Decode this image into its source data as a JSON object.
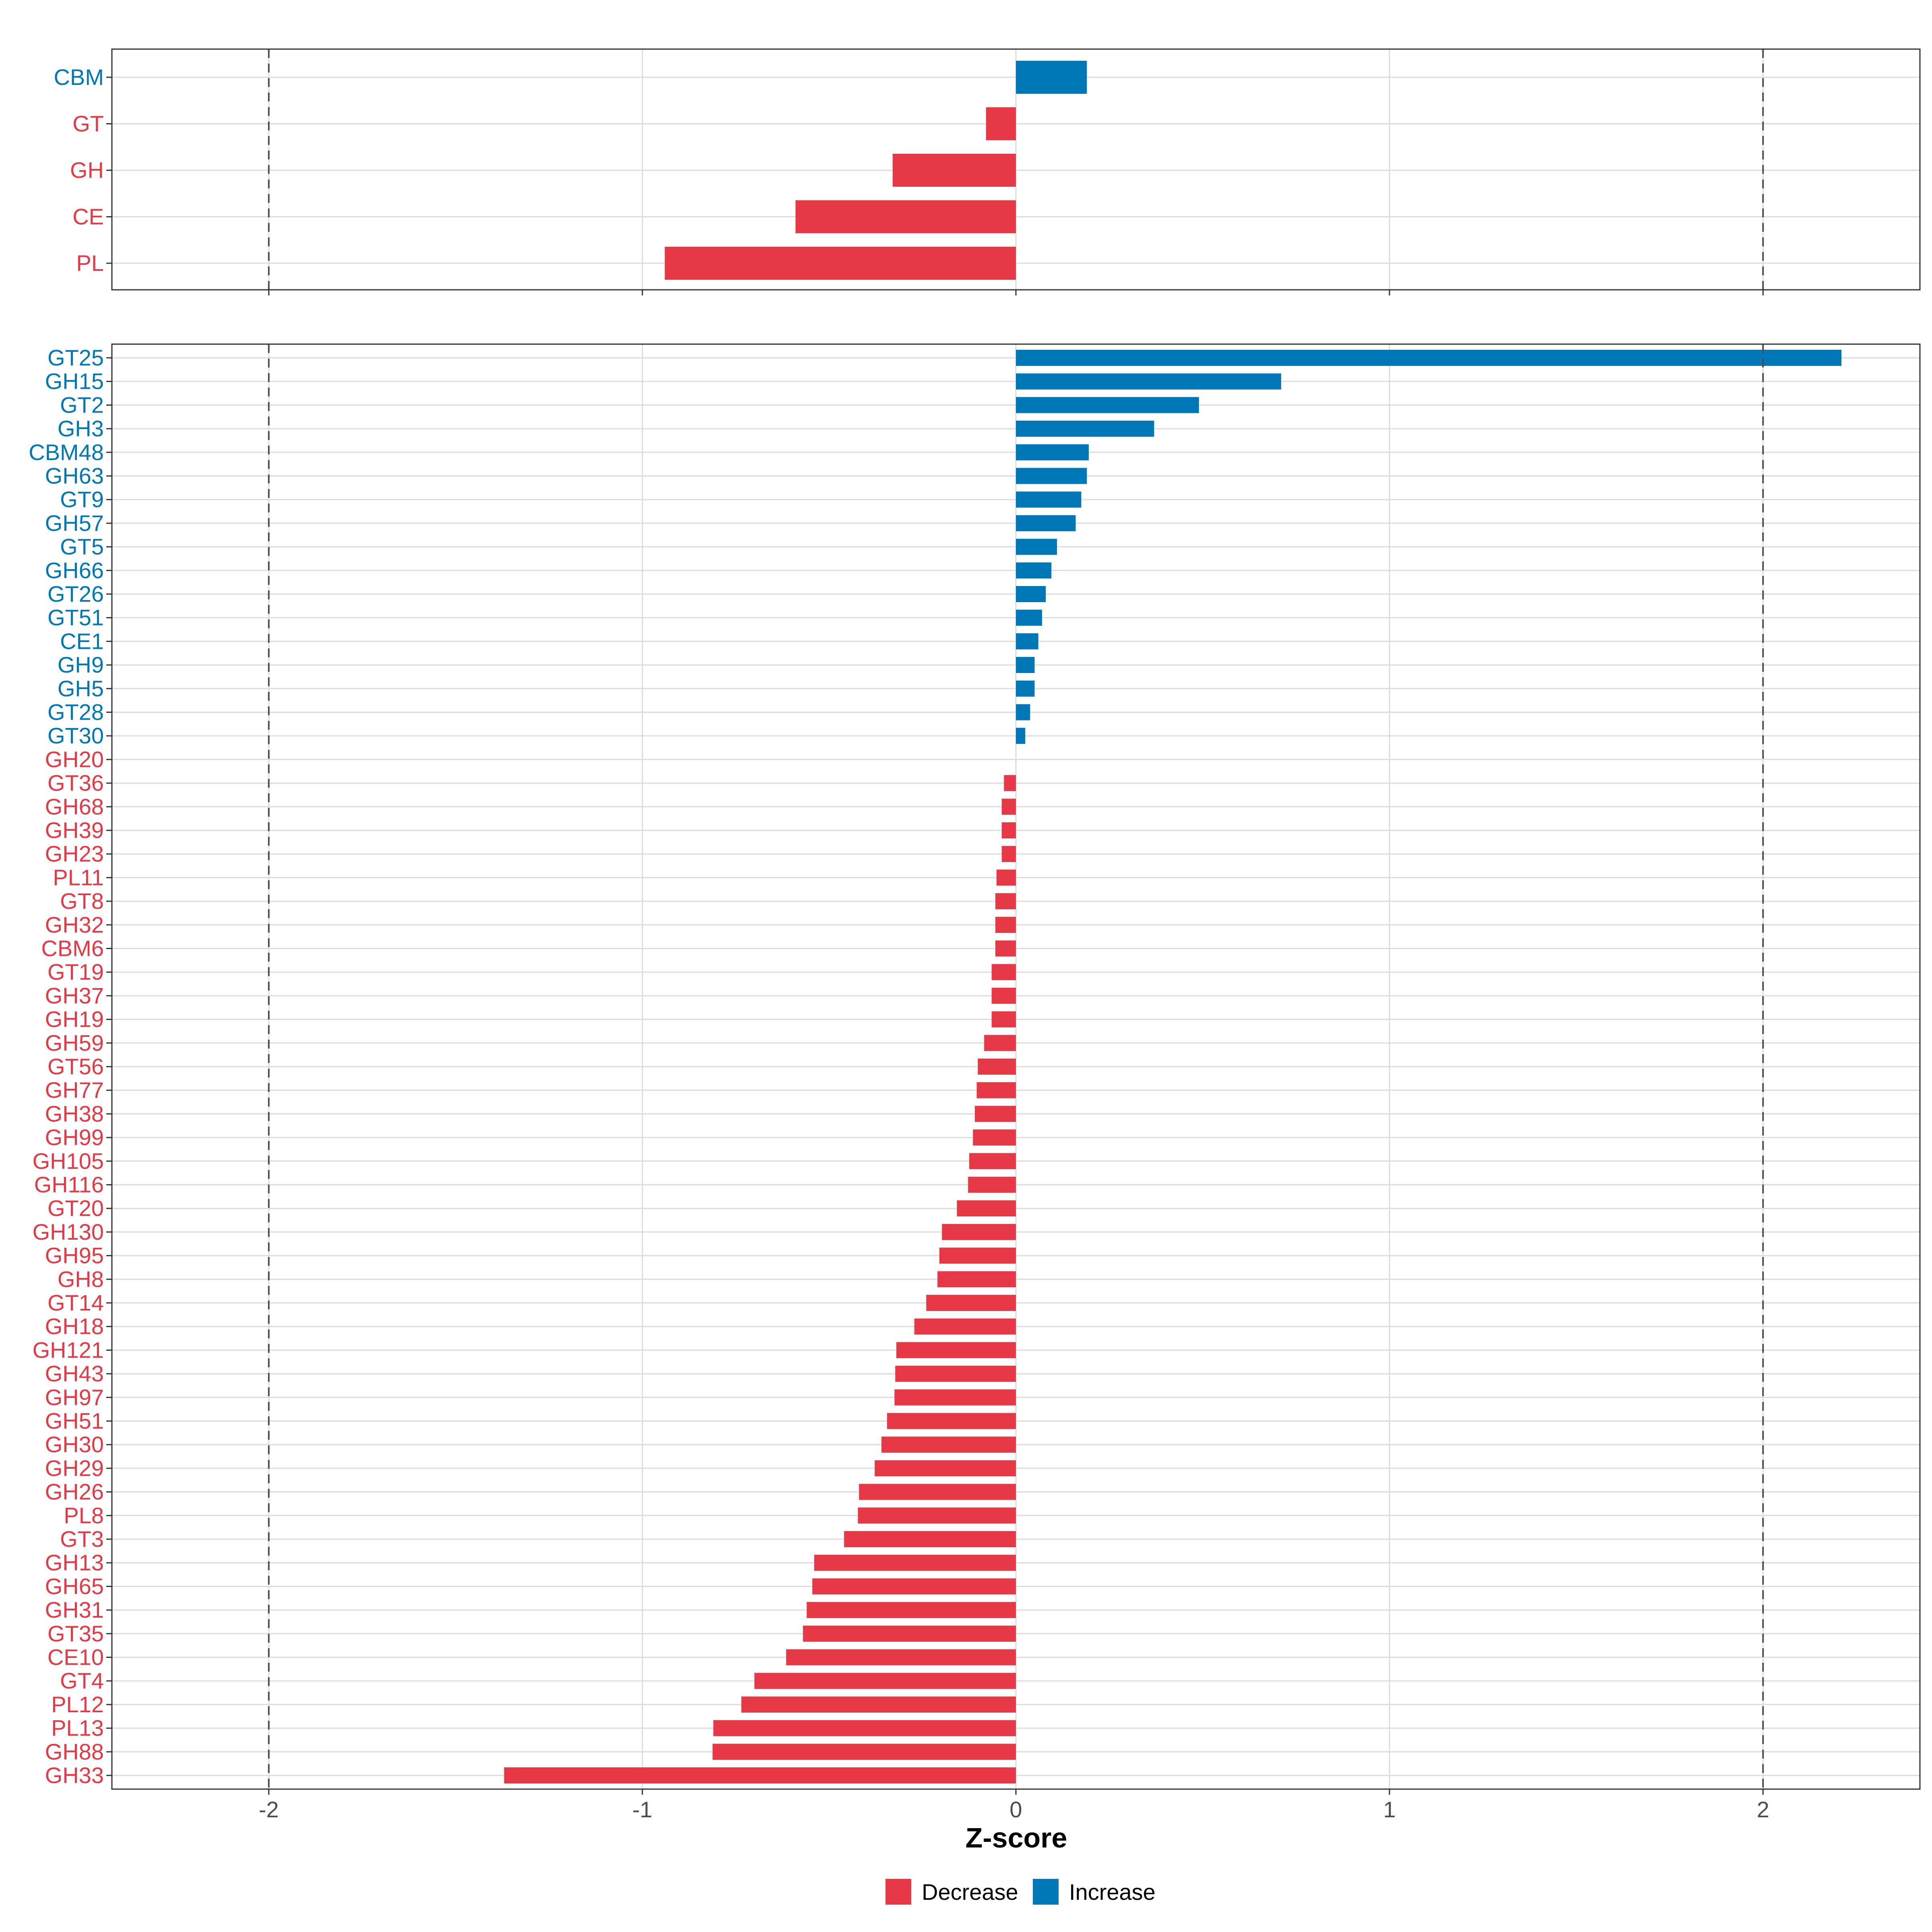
{
  "chart_data": {
    "type": "bar",
    "orientation": "horizontal",
    "xlabel": "Z-score",
    "xlim": [
      -2.42,
      2.42
    ],
    "x_ticks": [
      -2,
      -1,
      0,
      1,
      2
    ],
    "x_tick_labels": [
      "-2",
      "-1",
      "0",
      "1",
      "2"
    ],
    "reference_lines": [
      -2,
      2
    ],
    "grid": true,
    "legend": {
      "position": "bottom",
      "items": [
        {
          "label": "Decrease",
          "color": "#e63946"
        },
        {
          "label": "Increase",
          "color": "#0077b6"
        }
      ]
    },
    "colors": {
      "Decrease": "#e63946",
      "Increase": "#0077b6"
    },
    "panels": [
      {
        "name": "class",
        "categories": [
          "CBM",
          "GT",
          "GH",
          "CE",
          "PL"
        ],
        "values": [
          0.19,
          -0.08,
          -0.33,
          -0.59,
          -0.94
        ]
      },
      {
        "name": "family",
        "categories": [
          "GT25",
          "GH15",
          "GT2",
          "GH3",
          "CBM48",
          "GH63",
          "GT9",
          "GH57",
          "GT5",
          "GH66",
          "GT26",
          "GT51",
          "CE1",
          "GH9",
          "GH5",
          "GT28",
          "GT30",
          "GH20",
          "GT36",
          "GH68",
          "GH39",
          "GH23",
          "PL11",
          "GT8",
          "GH32",
          "CBM6",
          "GT19",
          "GH37",
          "GH19",
          "GH59",
          "GT56",
          "GH77",
          "GH38",
          "GH99",
          "GH105",
          "GH116",
          "GT20",
          "GH130",
          "GH95",
          "GH8",
          "GT14",
          "GH18",
          "GH121",
          "GH43",
          "GH97",
          "GH51",
          "GH30",
          "GH29",
          "GH26",
          "PL8",
          "GT3",
          "GH13",
          "GH65",
          "GH31",
          "GT35",
          "CE10",
          "GT4",
          "PL12",
          "PL13",
          "GH88",
          "GH33"
        ],
        "values": [
          2.21,
          0.71,
          0.49,
          0.37,
          0.195,
          0.19,
          0.175,
          0.16,
          0.11,
          0.095,
          0.08,
          0.07,
          0.06,
          0.05,
          0.05,
          0.038,
          0.025,
          0.0,
          -0.032,
          -0.038,
          -0.038,
          -0.038,
          -0.052,
          -0.055,
          -0.055,
          -0.055,
          -0.065,
          -0.065,
          -0.065,
          -0.085,
          -0.102,
          -0.105,
          -0.11,
          -0.115,
          -0.125,
          -0.128,
          -0.158,
          -0.198,
          -0.205,
          -0.21,
          -0.24,
          -0.272,
          -0.32,
          -0.323,
          -0.325,
          -0.345,
          -0.36,
          -0.378,
          -0.42,
          -0.423,
          -0.46,
          -0.54,
          -0.545,
          -0.56,
          -0.57,
          -0.615,
          -0.7,
          -0.735,
          -0.81,
          -0.812,
          -1.37
        ]
      }
    ]
  }
}
